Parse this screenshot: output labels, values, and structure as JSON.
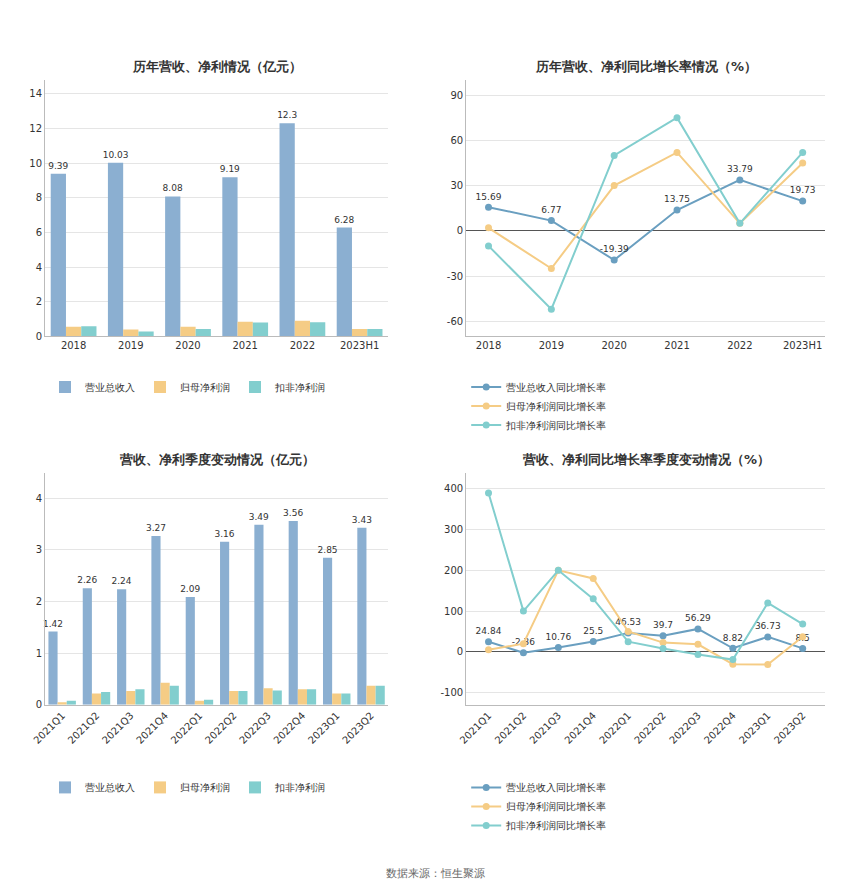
{
  "chart_data": [
    {
      "type": "bar",
      "title": "历年营收、净利情况（亿元）",
      "categories": [
        "2018",
        "2019",
        "2020",
        "2021",
        "2022",
        "2023H1"
      ],
      "series": [
        {
          "name": "营业总收入",
          "color": "#8bafd1",
          "values": [
            9.39,
            10.03,
            8.08,
            9.19,
            12.3,
            6.28
          ],
          "data_labels": true
        },
        {
          "name": "归母净利润",
          "color": "#f5cc85",
          "values": [
            0.55,
            0.4,
            0.55,
            0.85,
            0.9,
            0.42
          ]
        },
        {
          "name": "扣非净利润",
          "color": "#82cece",
          "values": [
            0.58,
            0.28,
            0.42,
            0.8,
            0.82,
            0.42
          ]
        }
      ],
      "ylim": [
        0,
        14.8
      ],
      "yticks": [
        0,
        2,
        4,
        6,
        8,
        10,
        12,
        14
      ],
      "grid": true,
      "legend": "bottom"
    },
    {
      "type": "line",
      "title": "历年营收、净利同比增长率情况（%）",
      "categories": [
        "2018",
        "2019",
        "2020",
        "2021",
        "2022",
        "2023H1"
      ],
      "series": [
        {
          "name": "营业总收入同比增长率",
          "color": "#6a9fc0",
          "marker": "circle",
          "values": [
            15.69,
            6.77,
            -19.39,
            13.75,
            33.79,
            19.73
          ],
          "data_labels": true
        },
        {
          "name": "归母净利润同比增长率",
          "color": "#f5cc85",
          "marker": "circle",
          "values": [
            2.0,
            -25.0,
            30.0,
            52.0,
            5.0,
            45.0
          ]
        },
        {
          "name": "扣非净利润同比增长率",
          "color": "#82cece",
          "marker": "circle",
          "values": [
            -10.0,
            -52.0,
            50.0,
            75.0,
            5.0,
            52.0
          ]
        }
      ],
      "ylim": [
        -70,
        100
      ],
      "yticks": [
        -60,
        -30,
        0,
        30,
        60,
        90
      ],
      "grid": true,
      "legend": "bottom"
    },
    {
      "type": "bar",
      "title": "营收、净利季度变动情况（亿元）",
      "categories": [
        "2021Q1",
        "2021Q2",
        "2021Q3",
        "2021Q4",
        "2022Q1",
        "2022Q2",
        "2022Q3",
        "2022Q4",
        "2023Q1",
        "2023Q2"
      ],
      "series": [
        {
          "name": "营业总收入",
          "color": "#8bafd1",
          "values": [
            1.42,
            2.26,
            2.24,
            3.27,
            2.09,
            3.16,
            3.49,
            3.56,
            2.85,
            3.43
          ],
          "data_labels": true
        },
        {
          "name": "归母净利润",
          "color": "#f5cc85",
          "values": [
            0.05,
            0.22,
            0.27,
            0.43,
            0.08,
            0.27,
            0.32,
            0.3,
            0.22,
            0.37
          ]
        },
        {
          "name": "扣非净利润",
          "color": "#82cece",
          "values": [
            0.08,
            0.25,
            0.3,
            0.37,
            0.1,
            0.27,
            0.28,
            0.3,
            0.22,
            0.37
          ]
        }
      ],
      "ylim": [
        0,
        4.5
      ],
      "yticks": [
        0,
        1,
        2,
        3,
        4
      ],
      "grid": true,
      "legend": "bottom"
    },
    {
      "type": "line",
      "title": "营收、净利同比增长率季度变动情况（%）",
      "categories": [
        "2021Q1",
        "2021Q2",
        "2021Q3",
        "2021Q4",
        "2022Q1",
        "2022Q2",
        "2022Q3",
        "2022Q4",
        "2023Q1",
        "2023Q2"
      ],
      "series": [
        {
          "name": "营业总收入同比增长率",
          "color": "#6a9fc0",
          "marker": "circle",
          "values": [
            24.84,
            -2.36,
            10.76,
            25.5,
            46.53,
            39.7,
            56.29,
            8.82,
            36.73,
            8.5
          ],
          "data_labels": true
        },
        {
          "name": "归母净利润同比增长率",
          "color": "#f5cc85",
          "marker": "circle",
          "values": [
            5.0,
            20.0,
            200.0,
            180.0,
            50.0,
            22.73,
            18.52,
            -30.23,
            -31.25,
            37.04
          ]
        },
        {
          "name": "扣非净利润同比增长率",
          "color": "#82cece",
          "marker": "circle",
          "values": [
            390.0,
            100.0,
            200.0,
            130.0,
            25.0,
            8.0,
            -6.67,
            -18.92,
            120.0,
            68.18
          ]
        }
      ],
      "ylim": [
        -130,
        440
      ],
      "yticks": [
        -100,
        0,
        100,
        200,
        300,
        400
      ],
      "grid": true,
      "legend": "bottom"
    }
  ],
  "annotations": [
    "数据来源：恒生聚源"
  ]
}
